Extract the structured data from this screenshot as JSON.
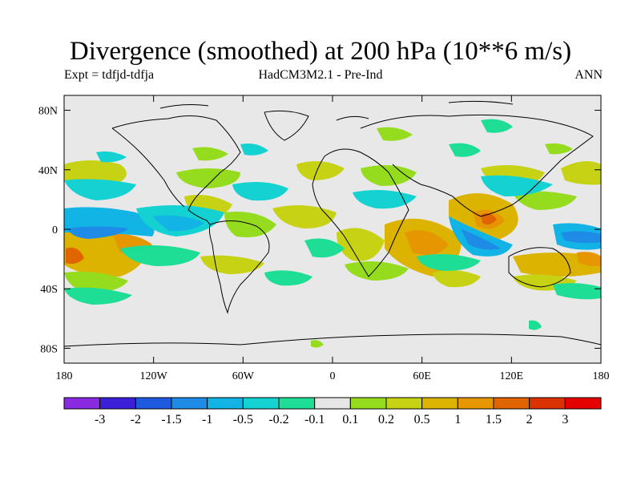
{
  "title": "Divergence (smoothed) at 200 hPa (10**6 m/s)",
  "subtitle_left": "Expt = tdfjd-tdfja",
  "subtitle_center": "HadCM3M2.1 - Pre-Ind",
  "subtitle_right": "ANN",
  "axes": {
    "lon_ticks": [
      "180",
      "120W",
      "60W",
      "0",
      "60E",
      "120E",
      "180"
    ],
    "lat_ticks": [
      "80N",
      "40N",
      "0",
      "40S",
      "80S"
    ]
  },
  "colorbar": {
    "colors": [
      "#8a2be2",
      "#3c1fd9",
      "#1e5ae0",
      "#1e8ce6",
      "#12b4e6",
      "#14d2d2",
      "#1ede96",
      "#e6e6e6",
      "#96dc1e",
      "#c8d214",
      "#dcb400",
      "#e69600",
      "#e06400",
      "#dc3200",
      "#e60000"
    ],
    "labels": [
      "-3",
      "-2",
      "-1.5",
      "-1",
      "-0.5",
      "-0.2",
      "-0.1",
      "0.1",
      "0.2",
      "0.5",
      "1",
      "1.5",
      "2",
      "3"
    ]
  },
  "colors": {
    "ocean": "#e8e8e8",
    "coast": "#000000"
  }
}
